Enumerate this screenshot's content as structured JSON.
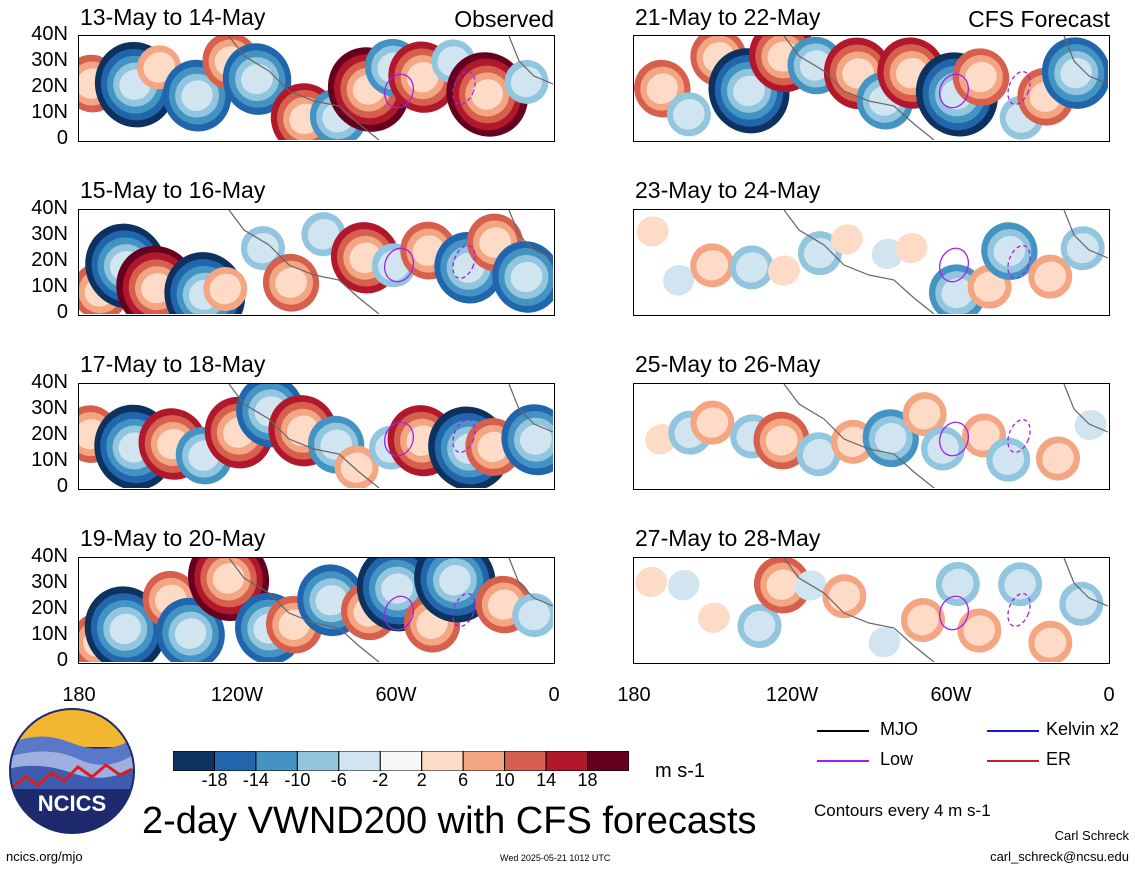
{
  "chart_data": {
    "type": "heatmap",
    "title": "2-day VWND200 with CFS forecasts",
    "units": "m s-1",
    "x_ticks": [
      "180",
      "120W",
      "60W",
      "0"
    ],
    "y_ticks": [
      "40N",
      "30N",
      "20N",
      "10N",
      "0"
    ],
    "colorbar": {
      "labels": [
        "-18",
        "-14",
        "-10",
        "-6",
        "-2",
        "2",
        "6",
        "10",
        "14",
        "18"
      ],
      "colors": [
        "#0d3260",
        "#2166ac",
        "#4393c3",
        "#92c5de",
        "#d1e5f0",
        "#f7f7f7",
        "#fddbc7",
        "#f4a582",
        "#d6604d",
        "#b2182b",
        "#67001f"
      ]
    },
    "column_labels": [
      "Observed",
      "CFS Forecast"
    ],
    "panels": [
      {
        "title": "13-May to 14-May",
        "source": "observed"
      },
      {
        "title": "15-May to 16-May",
        "source": "observed"
      },
      {
        "title": "17-May to 18-May",
        "source": "observed"
      },
      {
        "title": "19-May to 20-May",
        "source": "observed"
      },
      {
        "title": "21-May to 22-May",
        "source": "forecast"
      },
      {
        "title": "23-May to 24-May",
        "source": "forecast"
      },
      {
        "title": "25-May to 26-May",
        "source": "forecast"
      },
      {
        "title": "27-May to 28-May",
        "source": "forecast"
      }
    ],
    "legend": [
      {
        "label": "MJO",
        "color": "#000000"
      },
      {
        "label": "Kelvin x2",
        "color": "#1a1acc"
      },
      {
        "label": "Low",
        "color": "#a020f0"
      },
      {
        "label": "ER",
        "color": "#cc2020"
      }
    ],
    "contour_note": "Contours every 4 m s-1"
  },
  "logo": {
    "text": "NCICS"
  },
  "footer": {
    "url": "ncics.org/mjo",
    "timestamp": "Wed 2025-05-21 1012 UTC",
    "author": "Carl Schreck",
    "email": "carl_schreck@ncsu.edu"
  }
}
